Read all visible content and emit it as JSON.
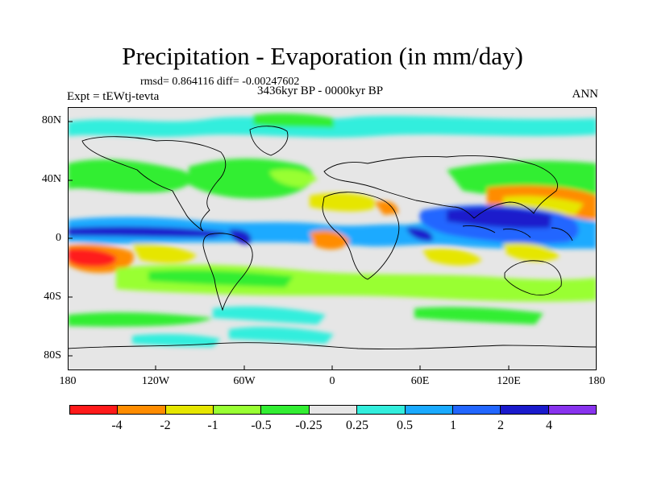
{
  "title": "Precipitation - Evaporation (in mm/day)",
  "stats": "rmsd= 0.864116 diff= -0.00247602",
  "experiment": "Expt = tEWtj-tevta",
  "period": "3436kyr BP - 0000kyr BP",
  "season": "ANN",
  "lat_labels": [
    "80N",
    "40N",
    "0",
    "40S",
    "80S"
  ],
  "lon_labels": [
    "180",
    "120W",
    "60W",
    "0",
    "60E",
    "120E",
    "180"
  ],
  "colorbar": {
    "labels": [
      "-4",
      "-2",
      "-1",
      "-0.5",
      "-0.25",
      "0.25",
      "0.5",
      "1",
      "2",
      "4"
    ],
    "colors": [
      "#ff1a1a",
      "#ff8c00",
      "#e6e600",
      "#99ff33",
      "#33ee33",
      "#e6e6e6",
      "#33eedd",
      "#1aaaff",
      "#2266ff",
      "#1a1acc",
      "#8833ee"
    ]
  }
}
